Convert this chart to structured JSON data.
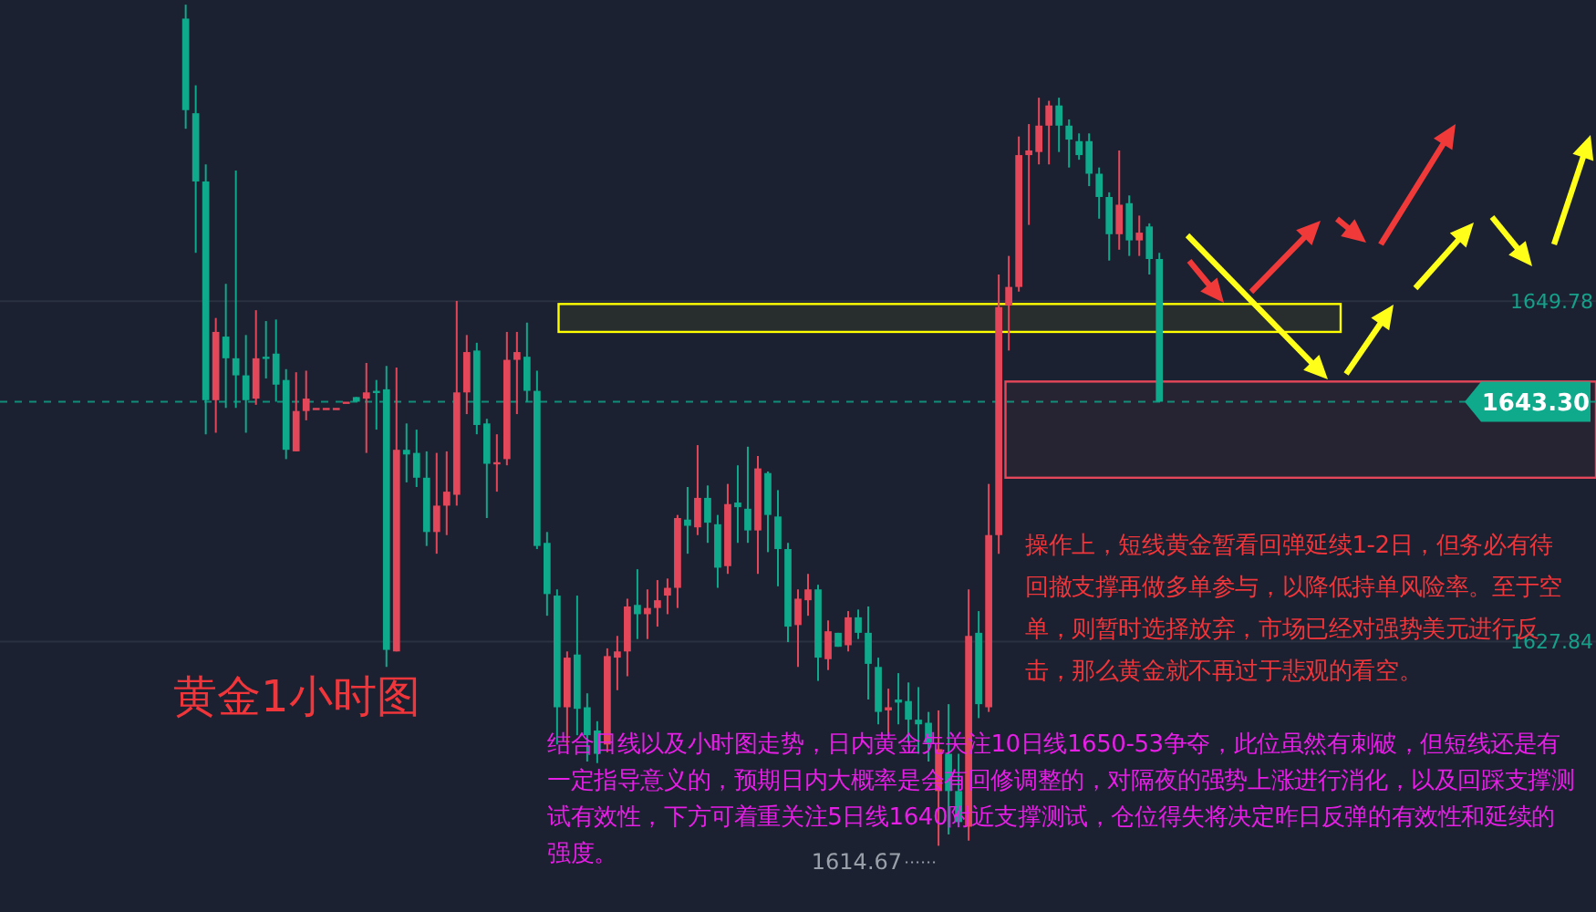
{
  "chart_data": {
    "type": "candlestick",
    "title": "黄金1小时图",
    "categories": [
      null,
      null,
      null,
      null,
      null,
      null,
      null,
      null,
      null,
      null,
      null,
      null,
      null,
      null,
      null,
      null,
      null,
      null,
      null,
      null,
      null,
      null,
      null,
      null,
      null,
      null,
      null,
      null,
      null,
      null,
      null,
      null,
      null,
      null,
      null,
      null,
      null,
      null,
      null,
      null,
      null,
      null,
      null,
      null,
      null,
      null,
      null,
      null,
      null,
      null,
      null,
      null,
      null,
      null,
      null,
      null,
      null,
      null,
      null,
      null,
      null,
      null,
      null,
      null,
      null,
      null,
      null,
      null,
      null,
      null,
      null,
      null,
      null,
      null,
      null,
      null,
      null,
      null,
      null,
      null,
      null,
      null,
      null,
      null,
      null,
      null,
      null,
      null,
      null,
      null,
      null,
      null,
      null,
      null,
      null,
      null,
      null,
      null,
      null,
      null,
      null,
      null,
      null,
      null,
      null,
      null,
      null,
      null,
      null,
      null,
      null,
      null,
      null,
      null,
      null,
      null,
      null,
      null,
      null,
      null,
      null,
      null,
      null,
      null,
      null,
      null,
      null,
      null,
      null,
      null,
      null,
      null,
      null,
      null,
      null,
      null,
      null,
      null,
      null,
      null,
      null,
      null,
      null,
      null,
      null,
      null,
      null,
      null,
      null,
      null,
      null,
      null,
      null,
      null,
      null,
      null,
      null,
      null,
      null
    ],
    "ohlc": [
      null,
      null,
      null,
      null,
      null,
      null,
      null,
      null,
      null,
      null,
      null,
      null,
      null,
      null,
      null,
      null,
      null,
      null,
      [
        1668.0,
        1668.9,
        1660.9,
        1662.1
      ],
      [
        1661.9,
        1663.7,
        1652.9,
        1657.5
      ],
      [
        1657.5,
        1658.6,
        1641.2,
        1643.4
      ],
      [
        1643.4,
        1648.7,
        1641.3,
        1647.8
      ],
      [
        1647.5,
        1650.9,
        1642.9,
        1646.1
      ],
      [
        1646.1,
        1658.2,
        1642.9,
        1645.0
      ],
      [
        1645.0,
        1647.6,
        1641.3,
        1643.4
      ],
      [
        1643.5,
        1649.2,
        1643.1,
        1646.1
      ],
      [
        1646.2,
        1648.5,
        1644.8,
        1646.1
      ],
      [
        1646.4,
        1648.6,
        1643.3,
        1644.4
      ],
      [
        1644.7,
        1645.4,
        1639.6,
        1640.2
      ],
      [
        1640.1,
        1645.2,
        1640.1,
        1642.7
      ],
      [
        1642.7,
        1645.3,
        1642.1,
        1643.5
      ],
      [
        1642.9,
        1642.9,
        1642.9,
        1642.9
      ],
      [
        1642.9,
        1642.9,
        1642.9,
        1642.9
      ],
      [
        1642.9,
        1642.9,
        1642.9,
        1642.9
      ],
      [
        1643.3,
        1643.3,
        1643.3,
        1643.3
      ],
      [
        1643.6,
        1643.6,
        1643.3,
        1643.3
      ],
      [
        1643.5,
        1645.8,
        1640.0,
        1643.9
      ],
      [
        1644.0,
        1644.7,
        1641.5,
        1643.9
      ],
      [
        1644.1,
        1645.6,
        1626.2,
        1627.3
      ],
      [
        1627.2,
        1645.5,
        1627.2,
        1640.2
      ],
      [
        1640.2,
        1641.9,
        1638.1,
        1639.9
      ],
      [
        1640.0,
        1641.5,
        1637.8,
        1638.4
      ],
      [
        1638.4,
        1640.1,
        1634.0,
        1634.9
      ],
      [
        1634.9,
        1640.0,
        1633.5,
        1636.6
      ],
      [
        1636.6,
        1640.1,
        1634.7,
        1637.5
      ],
      [
        1637.3,
        1649.8,
        1636.6,
        1643.9
      ],
      [
        1643.9,
        1647.6,
        1642.5,
        1646.5
      ],
      [
        1646.6,
        1647.1,
        1641.2,
        1641.8
      ],
      [
        1641.9,
        1642.2,
        1635.8,
        1639.3
      ],
      [
        1639.4,
        1641.2,
        1637.5,
        1639.4
      ],
      [
        1639.6,
        1647.8,
        1639.2,
        1646.0
      ],
      [
        1646.0,
        1647.8,
        1642.5,
        1646.5
      ],
      [
        1646.2,
        1648.4,
        1643.3,
        1644.0
      ],
      [
        1644.0,
        1645.3,
        1633.8,
        1634.0
      ],
      [
        1634.2,
        1634.9,
        1629.5,
        1630.9
      ],
      [
        1630.8,
        1631.2,
        1621.2,
        1623.6
      ],
      [
        1623.6,
        1627.2,
        1621.1,
        1626.8
      ],
      [
        1627.0,
        1630.8,
        1621.8,
        1623.5
      ],
      [
        1623.6,
        1624.5,
        1620.1,
        1621.8
      ],
      [
        1622.1,
        1622.7,
        1620.0,
        1620.6
      ],
      [
        1621.2,
        1627.4,
        1620.7,
        1626.9
      ],
      [
        1626.8,
        1628.2,
        1624.7,
        1627.2
      ],
      [
        1627.2,
        1630.6,
        1625.6,
        1630.1
      ],
      [
        1630.2,
        1632.5,
        1628.0,
        1629.6
      ],
      [
        1629.6,
        1631.2,
        1628.0,
        1630.0
      ],
      [
        1630.0,
        1631.8,
        1628.8,
        1630.5
      ],
      [
        1630.8,
        1631.9,
        1629.6,
        1631.3
      ],
      [
        1631.3,
        1636.0,
        1630.0,
        1635.8
      ],
      [
        1635.7,
        1637.8,
        1633.5,
        1635.3
      ],
      [
        1635.2,
        1640.5,
        1634.7,
        1637.1
      ],
      [
        1637.1,
        1637.9,
        1634.2,
        1635.5
      ],
      [
        1635.4,
        1636.0,
        1631.3,
        1632.6
      ],
      [
        1632.7,
        1638.0,
        1632.2,
        1636.7
      ],
      [
        1636.8,
        1639.2,
        1634.2,
        1636.5
      ],
      [
        1636.4,
        1640.4,
        1634.2,
        1635.0
      ],
      [
        1635.0,
        1639.8,
        1632.2,
        1639.0
      ],
      [
        1638.7,
        1638.8,
        1633.6,
        1636.0
      ],
      [
        1635.9,
        1637.6,
        1631.4,
        1633.8
      ],
      [
        1633.8,
        1634.2,
        1627.8,
        1628.8
      ],
      [
        1628.9,
        1631.2,
        1626.2,
        1630.6
      ],
      [
        1630.5,
        1632.2,
        1629.5,
        1631.2
      ],
      [
        1631.2,
        1631.5,
        1625.3,
        1626.8
      ],
      [
        1626.7,
        1629.2,
        1626.0,
        1628.5
      ],
      [
        1628.4,
        1628.4,
        1627.5,
        1627.5
      ],
      [
        1627.6,
        1629.8,
        1627.2,
        1629.4
      ],
      [
        1629.4,
        1629.9,
        1628.0,
        1628.4
      ],
      [
        1628.4,
        1630.1,
        1624.1,
        1626.4
      ],
      [
        1626.2,
        1626.8,
        1622.5,
        1623.3
      ],
      [
        1623.4,
        1624.8,
        1621.8,
        1623.6
      ],
      [
        1624.1,
        1625.8,
        1622.5,
        1623.9
      ],
      [
        1624.0,
        1625.2,
        1621.3,
        1622.8
      ],
      [
        1622.8,
        1624.9,
        1620.6,
        1622.5
      ],
      [
        1622.6,
        1623.3,
        1620.1,
        1621.3
      ],
      [
        1618.2,
        1623.4,
        1614.67,
        1620.9
      ],
      [
        1620.6,
        1623.8,
        1615.4,
        1618.2
      ],
      [
        1618.2,
        1620.6,
        1615.9,
        1616.2
      ],
      [
        1615.9,
        1631.2,
        1615.0,
        1628.2
      ],
      [
        1628.4,
        1629.8,
        1622.9,
        1623.8
      ],
      [
        1623.6,
        1638.0,
        1623.3,
        1634.7
      ],
      [
        1634.7,
        1651.5,
        1633.5,
        1649.4
      ],
      [
        1649.5,
        1652.7,
        1646.6,
        1650.7
      ],
      [
        1650.7,
        1660.4,
        1650.4,
        1659.2
      ],
      [
        1659.2,
        1661.2,
        1654.7,
        1659.5
      ],
      [
        1659.4,
        1662.9,
        1658.6,
        1661.1
      ],
      [
        1661.1,
        1662.7,
        1658.6,
        1662.4
      ],
      [
        1662.4,
        1662.9,
        1659.4,
        1661.1
      ],
      [
        1661.1,
        1661.5,
        1658.4,
        1660.2
      ],
      [
        1660.1,
        1660.6,
        1658.9,
        1659.2
      ],
      [
        1660.1,
        1660.6,
        1657.2,
        1658.0
      ],
      [
        1658.0,
        1658.4,
        1655.1,
        1656.5
      ],
      [
        1656.5,
        1656.8,
        1652.4,
        1654.1
      ],
      [
        1654.1,
        1659.5,
        1653.1,
        1656.0
      ],
      [
        1656.1,
        1656.6,
        1652.7,
        1653.7
      ],
      [
        1653.7,
        1655.3,
        1652.7,
        1654.2
      ],
      [
        1654.6,
        1654.8,
        1651.5,
        1652.5
      ],
      [
        1652.5,
        1652.9,
        1643.3,
        1643.3
      ],
      null,
      null,
      null,
      null,
      null,
      null,
      null,
      null,
      null,
      null,
      null,
      null,
      null,
      null,
      null,
      null,
      null,
      null,
      null,
      null,
      null,
      null,
      null,
      null,
      null,
      null,
      null,
      null,
      null,
      null,
      null,
      null,
      null,
      null,
      null,
      null,
      null,
      null,
      null,
      null,
      null,
      null,
      null
    ],
    "colors": [
      null,
      null,
      null,
      null,
      null,
      null,
      null,
      null,
      null,
      null,
      null,
      null,
      null,
      null,
      null,
      null,
      null,
      null,
      "#0fa98c",
      "#0fa98c",
      "#0fa98c",
      "#e5475a",
      "#0fa98c",
      "#0fa98c",
      "#0fa98c",
      "#e5475a",
      "#0fa98c",
      "#0fa98c",
      "#0fa98c",
      "#e5475a",
      "#e5475a",
      "#e5475a",
      "#e5475a",
      "#e5475a",
      "#e5475a",
      "#0fa98c",
      "#e5475a",
      "#0fa98c",
      "#0fa98c",
      "#e5475a",
      "#0fa98c",
      "#0fa98c",
      "#0fa98c",
      "#e5475a",
      "#e5475a",
      "#e5475a",
      "#e5475a",
      "#0fa98c",
      "#0fa98c",
      "#e5475a",
      "#e5475a",
      "#e5475a",
      "#0fa98c",
      "#0fa98c",
      "#0fa98c",
      "#0fa98c",
      "#e5475a",
      "#0fa98c",
      "#0fa98c",
      "#0fa98c",
      "#e5475a",
      "#e5475a",
      "#e5475a",
      "#0fa98c",
      "#e5475a",
      "#e5475a",
      "#e5475a",
      "#e5475a",
      "#0fa98c",
      "#e5475a",
      "#0fa98c",
      "#0fa98c",
      "#e5475a",
      "#0fa98c",
      "#0fa98c",
      "#e5475a",
      "#0fa98c",
      "#0fa98c",
      "#0fa98c",
      "#e5475a",
      "#e5475a",
      "#0fa98c",
      "#e5475a",
      "#0fa98c",
      "#e5475a",
      "#0fa98c",
      "#0fa98c",
      "#0fa98c",
      "#e5475a",
      "#0fa98c",
      "#0fa98c",
      "#0fa98c",
      "#0fa98c",
      "#e5475a",
      "#0fa98c",
      "#0fa98c",
      "#e5475a",
      "#0fa98c",
      "#e5475a",
      "#e5475a",
      "#e5475a",
      "#e5475a",
      "#e5475a",
      "#e5475a",
      "#e5475a",
      "#0fa98c",
      "#0fa98c",
      "#0fa98c",
      "#0fa98c",
      "#0fa98c",
      "#0fa98c",
      "#e5475a",
      "#0fa98c",
      "#e5475a",
      "#0fa98c",
      "#0fa98c",
      null,
      null,
      null,
      null,
      null,
      null,
      null,
      null,
      null,
      null,
      null,
      null,
      null,
      null,
      null,
      null,
      null,
      null,
      null,
      null,
      null,
      null,
      null,
      null,
      null,
      null,
      null,
      null,
      null,
      null,
      null,
      null,
      null,
      null,
      null,
      null,
      null,
      null,
      null,
      null,
      null,
      null,
      null
    ],
    "ylim": [
      1610.4,
      1669.2
    ],
    "yticks": [
      1627.84,
      1649.78
    ],
    "grid": "y",
    "ref_lines": [
      {
        "axis": "y",
        "value": 1643.3,
        "label": "1643.30",
        "color": "#0fa98c",
        "line_style": "dashed"
      }
    ],
    "bands": [
      {
        "axis": "y",
        "from": 1647.8,
        "to": 1649.6,
        "color": "#ffff00"
      },
      {
        "axis": "y",
        "from": 1638.4,
        "to": 1644.6,
        "color": "#e5475a"
      }
    ],
    "annotations": [
      "操作上，短线黄金暂看回弹延续1-2日，但务必有待回撤支撑再做多单参与，以降低持单风险率。至于空单，则暂时选择放弃，市场已经对强势美元进行反击，那么黄金就不再过于悲观的看空。",
      "结合日线以及小时图走势，日内黄金先关注10日线1650-53争夺，此位虽然有刺破，但短线还是有一定指导意义的，预期日内大概率是会有回修调整的，对隔夜的强势上涨进行消化，以及回踩支撑测试有效性，下方可着重关注5日线1640附近支撑测试，仓位得失将决定昨日反弹的有效性和延续的强度。",
      "1614.67"
    ]
  }
}
